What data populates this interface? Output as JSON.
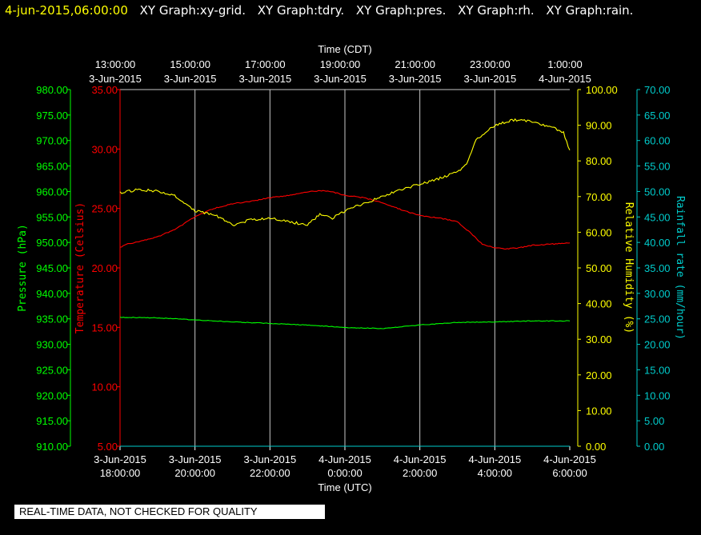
{
  "header": {
    "date_label": "4-jun-2015,06:00:00",
    "tabs": [
      "XY Graph:xy-grid.",
      "XY Graph:tdry.",
      "XY Graph:pres.",
      "XY Graph:rh.",
      "XY Graph:rain."
    ]
  },
  "notice": "REAL-TIME DATA, NOT CHECKED FOR QUALITY",
  "colors": {
    "background": "#000000",
    "grid": "#c8c8c8",
    "pressure": "#00ff00",
    "temperature": "#ff0000",
    "humidity": "#ffff00",
    "rain": "#00cccc",
    "header_date": "#ffff00"
  },
  "chart_data": {
    "type": "line",
    "title": "",
    "grid": true,
    "top_axis": {
      "label": "Time (CDT)",
      "ticks": [
        {
          "time": "13:00:00",
          "date": "3-Jun-2015"
        },
        {
          "time": "15:00:00",
          "date": "3-Jun-2015"
        },
        {
          "time": "17:00:00",
          "date": "3-Jun-2015"
        },
        {
          "time": "19:00:00",
          "date": "3-Jun-2015"
        },
        {
          "time": "21:00:00",
          "date": "3-Jun-2015"
        },
        {
          "time": "23:00:00",
          "date": "3-Jun-2015"
        },
        {
          "time": "1:00:00",
          "date": "4-Jun-2015"
        }
      ]
    },
    "bottom_axis": {
      "label": "Time (UTC)",
      "range": [
        "2015-06-03 18:00:00",
        "2015-06-04 06:00:00"
      ],
      "ticks": [
        {
          "date": "3-Jun-2015",
          "time": "18:00:00"
        },
        {
          "date": "3-Jun-2015",
          "time": "20:00:00"
        },
        {
          "date": "3-Jun-2015",
          "time": "22:00:00"
        },
        {
          "date": "4-Jun-2015",
          "time": "0:00:00"
        },
        {
          "date": "4-Jun-2015",
          "time": "2:00:00"
        },
        {
          "date": "4-Jun-2015",
          "time": "4:00:00"
        },
        {
          "date": "4-Jun-2015",
          "time": "6:00:00"
        }
      ]
    },
    "y_axes": {
      "pressure": {
        "label": "Pressure (hPa)",
        "range": [
          910,
          980
        ],
        "step": 5,
        "ticks": [
          "910.00",
          "915.00",
          "920.00",
          "925.00",
          "930.00",
          "935.00",
          "940.00",
          "945.00",
          "950.00",
          "955.00",
          "960.00",
          "965.00",
          "970.00",
          "975.00",
          "980.00"
        ]
      },
      "temperature": {
        "label": "Temperature (Celsius)",
        "range": [
          5,
          35
        ],
        "step": 5,
        "ticks": [
          "5.00",
          "10.00",
          "15.00",
          "20.00",
          "25.00",
          "30.00",
          "35.00"
        ]
      },
      "humidity": {
        "label": "Relative Humidity (%)",
        "range": [
          0,
          100
        ],
        "step": 10,
        "ticks": [
          "0.00",
          "10.00",
          "20.00",
          "30.00",
          "40.00",
          "50.00",
          "60.00",
          "70.00",
          "80.00",
          "90.00",
          "100.00"
        ]
      },
      "rain": {
        "label": "Rainfall rate (mm/hour)",
        "range": [
          0,
          70
        ],
        "step": 5,
        "ticks": [
          "0.00",
          "5.00",
          "10.00",
          "15.00",
          "20.00",
          "25.00",
          "30.00",
          "35.00",
          "40.00",
          "45.00",
          "50.00",
          "55.00",
          "60.00",
          "65.00",
          "70.00"
        ]
      }
    },
    "series": [
      {
        "axis": "temperature",
        "x": [
          "2015-06-03 18:00",
          "2015-06-03 18:10",
          "2015-06-03 18:30",
          "2015-06-03 19:00",
          "2015-06-03 19:30",
          "2015-06-03 20:00",
          "2015-06-03 20:30",
          "2015-06-03 21:00",
          "2015-06-03 21:30",
          "2015-06-03 22:00",
          "2015-06-03 22:30",
          "2015-06-03 23:00",
          "2015-06-03 23:20",
          "2015-06-03 23:40",
          "2015-06-04 00:00",
          "2015-06-04 00:30",
          "2015-06-04 01:00",
          "2015-06-04 01:30",
          "2015-06-04 02:00",
          "2015-06-04 02:30",
          "2015-06-04 03:00",
          "2015-06-04 03:20",
          "2015-06-04 03:40",
          "2015-06-04 04:00",
          "2015-06-04 04:20",
          "2015-06-04 04:40",
          "2015-06-04 05:00",
          "2015-06-04 05:30",
          "2015-06-04 06:00"
        ],
        "values": [
          21.7,
          22.0,
          22.2,
          22.6,
          23.3,
          24.3,
          25.0,
          25.4,
          25.6,
          25.9,
          26.1,
          26.4,
          26.5,
          26.4,
          26.1,
          25.9,
          25.5,
          24.9,
          24.4,
          24.2,
          23.9,
          23.0,
          22.0,
          21.7,
          21.6,
          21.7,
          21.9,
          22.0,
          22.1
        ]
      },
      {
        "axis": "humidity",
        "x": [
          "2015-06-03 18:00",
          "2015-06-03 18:30",
          "2015-06-03 19:00",
          "2015-06-03 19:30",
          "2015-06-03 20:00",
          "2015-06-03 20:30",
          "2015-06-03 21:00",
          "2015-06-03 21:30",
          "2015-06-03 22:00",
          "2015-06-03 22:30",
          "2015-06-03 23:00",
          "2015-06-03 23:20",
          "2015-06-03 23:40",
          "2015-06-04 00:00",
          "2015-06-04 00:30",
          "2015-06-04 01:00",
          "2015-06-04 01:30",
          "2015-06-04 02:00",
          "2015-06-04 02:30",
          "2015-06-04 03:00",
          "2015-06-04 03:15",
          "2015-06-04 03:30",
          "2015-06-04 04:00",
          "2015-06-04 04:30",
          "2015-06-04 05:00",
          "2015-06-04 05:30",
          "2015-06-04 05:50",
          "2015-06-04 06:00"
        ],
        "values": [
          71,
          72,
          71.5,
          70,
          66,
          65,
          62,
          63.5,
          64,
          63,
          62,
          65,
          64,
          66,
          68,
          70,
          72,
          73.5,
          75,
          77,
          79,
          86,
          90,
          91.5,
          91,
          89.5,
          88,
          83
        ]
      },
      {
        "axis": "pressure",
        "x": [
          "2015-06-03 18:00",
          "2015-06-03 19:00",
          "2015-06-03 20:00",
          "2015-06-03 21:00",
          "2015-06-03 22:00",
          "2015-06-03 23:00",
          "2015-06-04 00:00",
          "2015-06-04 01:00",
          "2015-06-04 02:00",
          "2015-06-04 03:00",
          "2015-06-04 04:00",
          "2015-06-04 05:00",
          "2015-06-04 06:00"
        ],
        "values": [
          935.3,
          935.2,
          934.8,
          934.4,
          934.1,
          933.8,
          933.3,
          933.1,
          933.8,
          934.3,
          934.4,
          934.6,
          934.6
        ]
      },
      {
        "axis": "rain",
        "x": [
          "2015-06-03 18:00",
          "2015-06-04 06:00"
        ],
        "values": [
          0,
          0
        ]
      }
    ]
  }
}
